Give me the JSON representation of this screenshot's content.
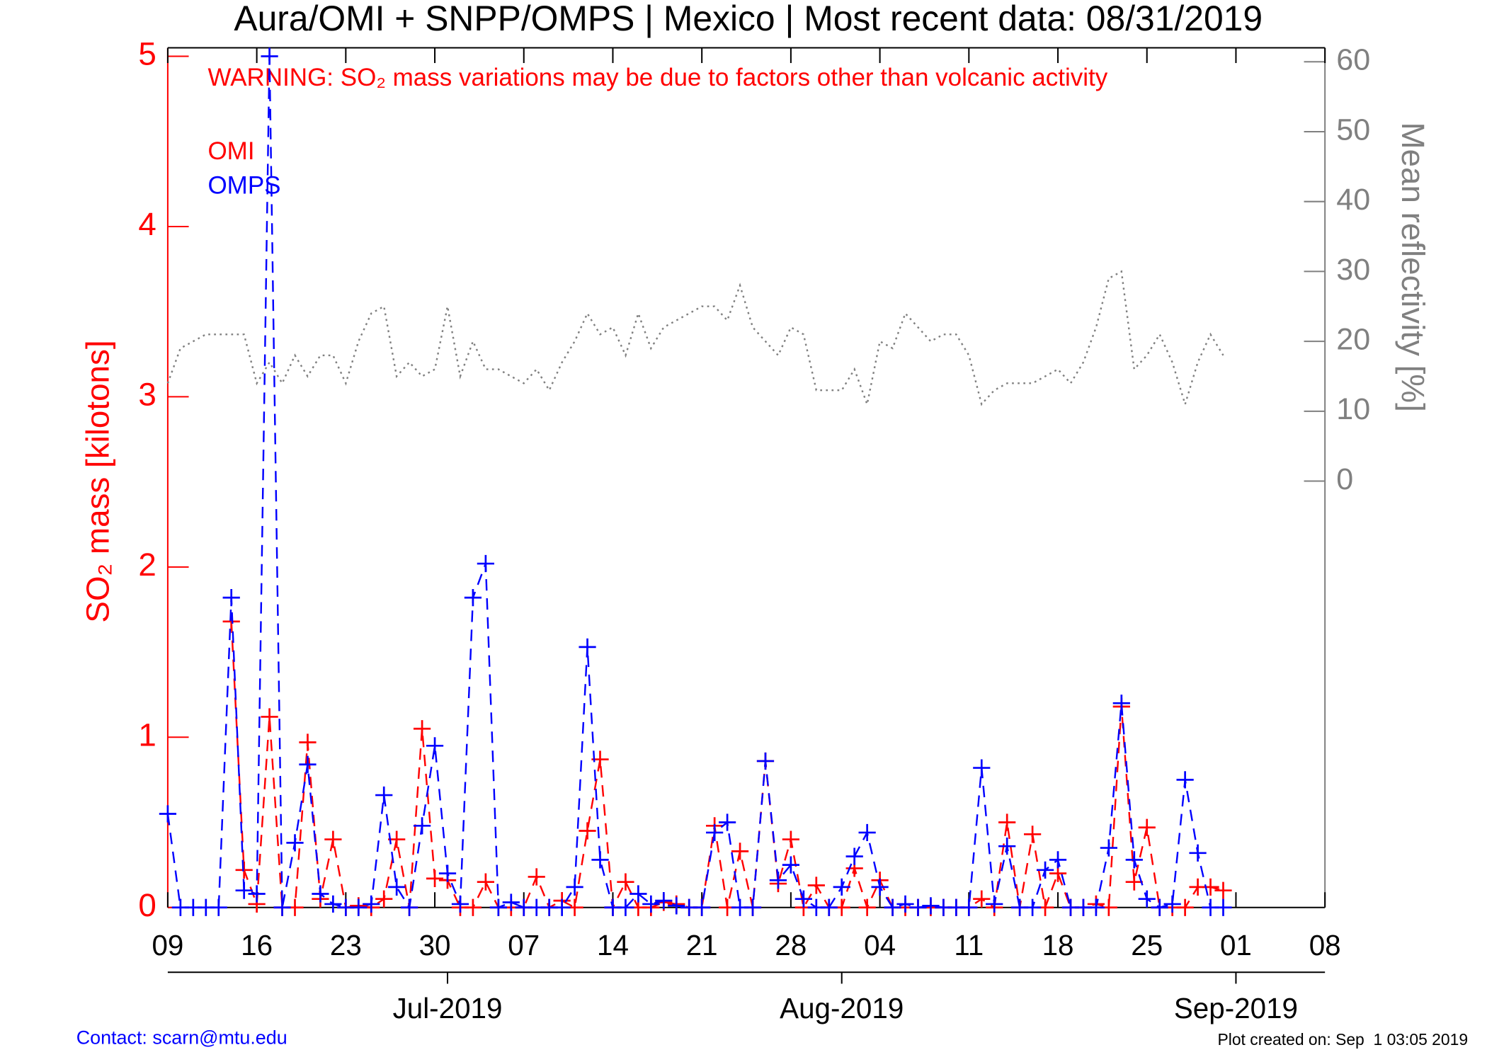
{
  "chart_data": {
    "type": "line",
    "title": "Aura/OMI + SNPP/OMPS | Mexico | Most recent data: 08/31/2019",
    "annotation": "WARNING: SO₂ mass variations may be due to factors other than volcanic activity",
    "ylabel": "SO₂ mass [kilotons]",
    "y2label": "Mean reflectivity [%]",
    "contact": "Contact: scarn@mtu.edu",
    "created": "Plot created on: Sep  1 03:05 2019",
    "x": [
      "2019-06-09",
      "2019-06-10",
      "2019-06-11",
      "2019-06-12",
      "2019-06-13",
      "2019-06-14",
      "2019-06-15",
      "2019-06-16",
      "2019-06-17",
      "2019-06-18",
      "2019-06-19",
      "2019-06-20",
      "2019-06-21",
      "2019-06-22",
      "2019-06-23",
      "2019-06-24",
      "2019-06-25",
      "2019-06-26",
      "2019-06-27",
      "2019-06-28",
      "2019-06-29",
      "2019-06-30",
      "2019-07-01",
      "2019-07-02",
      "2019-07-03",
      "2019-07-04",
      "2019-07-05",
      "2019-07-06",
      "2019-07-07",
      "2019-07-08",
      "2019-07-09",
      "2019-07-10",
      "2019-07-11",
      "2019-07-12",
      "2019-07-13",
      "2019-07-14",
      "2019-07-15",
      "2019-07-16",
      "2019-07-17",
      "2019-07-18",
      "2019-07-19",
      "2019-07-20",
      "2019-07-21",
      "2019-07-22",
      "2019-07-23",
      "2019-07-24",
      "2019-07-25",
      "2019-07-26",
      "2019-07-27",
      "2019-07-28",
      "2019-07-29",
      "2019-07-30",
      "2019-07-31",
      "2019-08-01",
      "2019-08-02",
      "2019-08-03",
      "2019-08-04",
      "2019-08-05",
      "2019-08-06",
      "2019-08-07",
      "2019-08-08",
      "2019-08-09",
      "2019-08-10",
      "2019-08-11",
      "2019-08-12",
      "2019-08-13",
      "2019-08-14",
      "2019-08-15",
      "2019-08-16",
      "2019-08-17",
      "2019-08-18",
      "2019-08-19",
      "2019-08-20",
      "2019-08-21",
      "2019-08-22",
      "2019-08-23",
      "2019-08-24",
      "2019-08-25",
      "2019-08-26",
      "2019-08-27",
      "2019-08-28",
      "2019-08-29",
      "2019-08-30",
      "2019-08-31"
    ],
    "xlim": [
      "2019-06-09",
      "2019-09-08"
    ],
    "xticks": [
      {
        "value": "2019-06-09",
        "label": "09"
      },
      {
        "value": "2019-06-16",
        "label": "16"
      },
      {
        "value": "2019-06-23",
        "label": "23"
      },
      {
        "value": "2019-06-30",
        "label": "30"
      },
      {
        "value": "2019-07-07",
        "label": "07"
      },
      {
        "value": "2019-07-14",
        "label": "14"
      },
      {
        "value": "2019-07-21",
        "label": "21"
      },
      {
        "value": "2019-07-28",
        "label": "28"
      },
      {
        "value": "2019-08-04",
        "label": "04"
      },
      {
        "value": "2019-08-11",
        "label": "11"
      },
      {
        "value": "2019-08-18",
        "label": "18"
      },
      {
        "value": "2019-08-25",
        "label": "25"
      },
      {
        "value": "2019-09-01",
        "label": "01"
      },
      {
        "value": "2019-09-08",
        "label": "08"
      }
    ],
    "month_ticks": [
      {
        "value": "2019-07-01",
        "label": "Jul-2019"
      },
      {
        "value": "2019-08-01",
        "label": "Aug-2019"
      },
      {
        "value": "2019-09-01",
        "label": "Sep-2019"
      }
    ],
    "ylim": [
      0,
      5.05
    ],
    "yticks": [
      0,
      1,
      2,
      3,
      4,
      5
    ],
    "y2lim": [
      -61,
      62
    ],
    "y2ticks": [
      0,
      10,
      20,
      30,
      40,
      50,
      60
    ],
    "series": [
      {
        "name": "OMI",
        "color": "#ff0000",
        "marker": true,
        "values": [
          null,
          null,
          null,
          null,
          null,
          1.68,
          0.22,
          0.02,
          1.12,
          0,
          0,
          0.97,
          0.05,
          0.4,
          0,
          0.01,
          0,
          0.05,
          0.4,
          0,
          1.05,
          0.17,
          0.16,
          0,
          0,
          0.15,
          0,
          0,
          0,
          0.18,
          0,
          0.04,
          0,
          0.45,
          0.87,
          0,
          0.15,
          0,
          0,
          0.03,
          0.02,
          0,
          0,
          0.48,
          0,
          0.33,
          0,
          0.86,
          0.14,
          0.4,
          0,
          0.13,
          0,
          0,
          0.23,
          0,
          0.16,
          0,
          0,
          0,
          0,
          0,
          0,
          0,
          0.05,
          0,
          0.5,
          0,
          0.43,
          0,
          0.2,
          0,
          0,
          0.02,
          0,
          1.18,
          0.15,
          0.47,
          0,
          0,
          0,
          0.12,
          0.12,
          0.1
        ]
      },
      {
        "name": "OMPS",
        "color": "#0000ff",
        "marker": true,
        "values": [
          0.55,
          0,
          0,
          0,
          0,
          1.82,
          0.1,
          0.08,
          5.0,
          0,
          0.38,
          0.84,
          0.08,
          0.02,
          0,
          0,
          0.02,
          0.66,
          0.12,
          0,
          0.48,
          0.95,
          0.2,
          0.02,
          1.82,
          2.02,
          0,
          0.03,
          0,
          0,
          0,
          0,
          0.12,
          1.53,
          0.28,
          0,
          0,
          0.08,
          0.02,
          0.04,
          0.01,
          0,
          0,
          0.44,
          0.5,
          0,
          0,
          0.86,
          0.16,
          0.25,
          0.05,
          0,
          0,
          0.12,
          0.3,
          0.44,
          0.12,
          0,
          0.02,
          0,
          0.01,
          0,
          0,
          0,
          0.82,
          0.02,
          0.36,
          0,
          0,
          0.22,
          0.28,
          0,
          0,
          0,
          0.35,
          1.2,
          0.28,
          0.05,
          0,
          0.02,
          0.75,
          0.32,
          0,
          0
        ]
      },
      {
        "axis": "y2",
        "color": "#808080",
        "marker": false,
        "values": [
          14,
          19,
          20,
          21,
          21,
          21,
          21,
          14,
          17,
          14,
          18,
          15,
          18,
          18,
          14,
          20,
          24,
          25,
          15,
          17,
          15,
          16,
          25,
          15,
          20,
          16,
          16,
          15,
          14,
          16,
          13,
          17,
          20,
          24,
          21,
          22,
          18,
          24,
          19,
          22,
          23,
          24,
          25,
          25,
          23,
          28,
          22,
          20,
          18,
          22,
          21,
          13,
          13,
          13,
          16,
          11,
          20,
          19,
          24,
          22,
          20,
          21,
          21,
          18,
          11,
          13,
          14,
          14,
          14,
          15,
          16,
          14,
          17,
          22,
          29,
          30,
          16,
          18,
          21,
          17,
          11,
          17,
          21,
          18
        ]
      }
    ]
  }
}
